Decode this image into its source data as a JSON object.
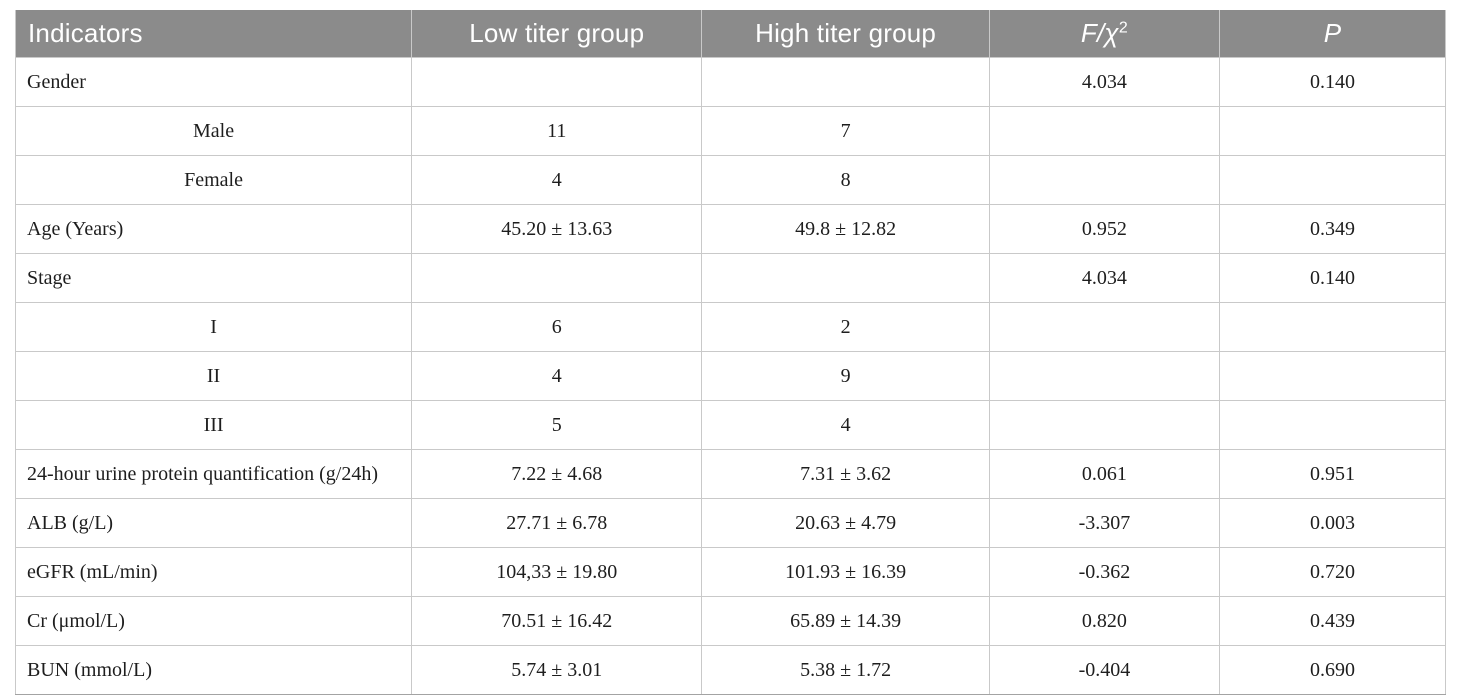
{
  "table": {
    "columns": [
      {
        "label": "Indicators"
      },
      {
        "label": "Low titer group"
      },
      {
        "label_main": "F/χ",
        "label_sup": "2"
      },
      {
        "label": "P"
      },
      {
        "label_high": "High titer group"
      }
    ],
    "header": {
      "indicators": "Indicators",
      "low": "Low titer group",
      "high": "High titer group",
      "f_main": "F/χ",
      "f_sup": "2",
      "p": "P"
    },
    "rows": [
      {
        "indicator": "Gender",
        "indent": false,
        "low": "",
        "high": "",
        "f": "4.034",
        "p": "0.140"
      },
      {
        "indicator": "Male",
        "indent": true,
        "low": "11",
        "high": "7",
        "f": "",
        "p": ""
      },
      {
        "indicator": "Female",
        "indent": true,
        "low": "4",
        "high": "8",
        "f": "",
        "p": ""
      },
      {
        "indicator": "Age (Years)",
        "indent": false,
        "low": "45.20 ± 13.63",
        "high": "49.8 ± 12.82",
        "f": "0.952",
        "p": "0.349"
      },
      {
        "indicator": "Stage",
        "indent": false,
        "low": "",
        "high": "",
        "f": "4.034",
        "p": "0.140"
      },
      {
        "indicator": "I",
        "indent": true,
        "low": "6",
        "high": "2",
        "f": "",
        "p": ""
      },
      {
        "indicator": "II",
        "indent": true,
        "low": "4",
        "high": "9",
        "f": "",
        "p": ""
      },
      {
        "indicator": "III",
        "indent": true,
        "low": "5",
        "high": "4",
        "f": "",
        "p": ""
      },
      {
        "indicator": "24-hour urine protein quantification (g/24h)",
        "indent": false,
        "low": "7.22 ± 4.68",
        "high": "7.31 ± 3.62",
        "f": "0.061",
        "p": "0.951"
      },
      {
        "indicator": "ALB (g/L)",
        "indent": false,
        "low": "27.71 ± 6.78",
        "high": "20.63 ± 4.79",
        "f": "-3.307",
        "p": "0.003"
      },
      {
        "indicator": "eGFR (mL/min)",
        "indent": false,
        "low": "104,33 ± 19.80",
        "high": "101.93 ± 16.39",
        "f": "-0.362",
        "p": "0.720"
      },
      {
        "indicator": "Cr (μmol/L)",
        "indent": false,
        "low": "70.51 ± 16.42",
        "high": "65.89 ± 14.39",
        "f": "0.820",
        "p": "0.439"
      },
      {
        "indicator": "BUN (mmol/L)",
        "indent": false,
        "low": "5.74 ± 3.01",
        "high": "5.38 ± 1.72",
        "f": "-0.404",
        "p": "0.690"
      }
    ],
    "colors": {
      "header_bg": "#8b8b8b",
      "header_text": "#ffffff",
      "body_text": "#1e1e1e",
      "grid_line": "#c9c9c9",
      "outer_bottom_border": "#a3a3a3"
    }
  }
}
